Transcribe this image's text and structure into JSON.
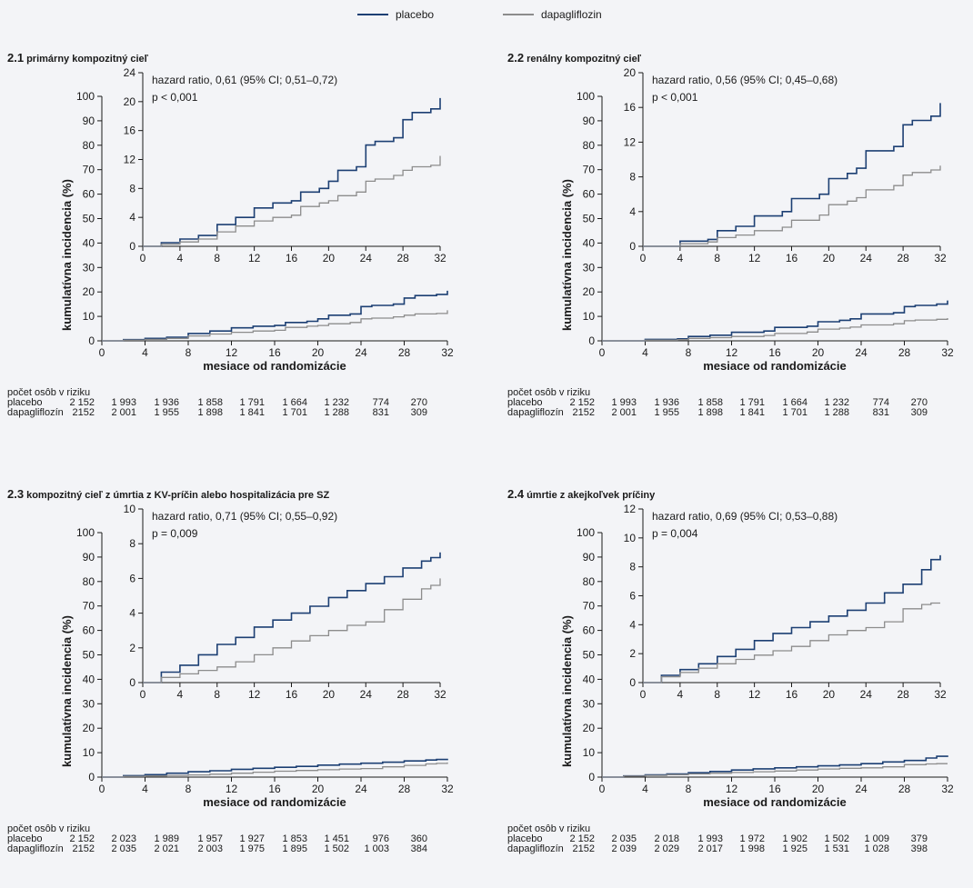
{
  "legend": {
    "placebo": "placebo",
    "dapagliflozin": "dapagliflozin"
  },
  "colors": {
    "placebo": "#1c3f73",
    "dapagliflozin": "#8c8c8c"
  },
  "risk_header": "počet osôb v riziku",
  "risk_labels": {
    "placebo": "placebo",
    "dapagliflozin": "dapagliflozín"
  },
  "xlabel": "mesiace od randomizácie",
  "ylabel": "kumulatívna incidencia  (%)",
  "chart_data": [
    {
      "type": "line",
      "number": "2.1",
      "title": "primárny kompozitný cieľ",
      "annotation": [
        "hazard ratio, 0,61 (95% CI; 0,51–0,72)",
        "p < 0,001"
      ],
      "xlabel": "mesiace od randomizácie",
      "ylabel": "kumulatívna incidencia  (%)",
      "xlim": [
        0,
        32
      ],
      "ylim": [
        0,
        100
      ],
      "xticks": [
        0,
        4,
        8,
        12,
        16,
        20,
        24,
        28,
        32
      ],
      "yticks": [
        0,
        10,
        20,
        30,
        40,
        50,
        60,
        70,
        80,
        90,
        100
      ],
      "inset": {
        "xlim": [
          0,
          32
        ],
        "ylim": [
          0,
          24
        ],
        "xticks": [
          0,
          4,
          8,
          12,
          16,
          20,
          24,
          28,
          32
        ],
        "yticks": [
          0,
          4,
          8,
          12,
          16,
          20,
          24
        ]
      },
      "series": [
        {
          "name": "placebo",
          "x": [
            0,
            2,
            4,
            6,
            8,
            10,
            12,
            14,
            16,
            17,
            19,
            20,
            21,
            23,
            24,
            25,
            27,
            28,
            29,
            31,
            32
          ],
          "y": [
            0,
            0.5,
            1,
            1.5,
            3,
            4,
            5.3,
            6,
            6.3,
            7.5,
            8,
            9,
            10.5,
            11,
            14,
            14.5,
            15,
            17.5,
            18.5,
            19,
            20.5
          ]
        },
        {
          "name": "dapagliflozin",
          "x": [
            0,
            2,
            4,
            6,
            8,
            10,
            12,
            14,
            16,
            17,
            19,
            20,
            21,
            23,
            24,
            25,
            27,
            28,
            29,
            31,
            32
          ],
          "y": [
            0,
            0.3,
            0.6,
            1,
            2,
            2.8,
            3.5,
            4,
            4.3,
            5.5,
            6,
            6.3,
            7,
            7.5,
            9,
            9.3,
            9.8,
            10.5,
            11,
            11.2,
            12.5
          ]
        }
      ],
      "risk": {
        "placebo": [
          "2 152",
          "1 993",
          "1 936",
          "1 858",
          "1 791",
          "1 664",
          "1 232",
          "774",
          "270"
        ],
        "dapagliflozin": [
          "2152",
          "2 001",
          "1 955",
          "1 898",
          "1 841",
          "1 701",
          "1 288",
          "831",
          "309"
        ]
      }
    },
    {
      "type": "line",
      "number": "2.2",
      "title": "renálny kompozitný cieľ",
      "annotation": [
        "hazard ratio, 0,56 (95% CI; 0,45–0,68)",
        "p < 0,001"
      ],
      "xlabel": "mesiace od randomizácie",
      "ylabel": "kumulatívna incidencia  (%)",
      "xlim": [
        0,
        32
      ],
      "ylim": [
        0,
        100
      ],
      "xticks": [
        0,
        4,
        8,
        12,
        16,
        20,
        24,
        28,
        32
      ],
      "yticks": [
        0,
        10,
        20,
        30,
        40,
        50,
        60,
        70,
        80,
        90,
        100
      ],
      "inset": {
        "xlim": [
          0,
          32
        ],
        "ylim": [
          0,
          20
        ],
        "xticks": [
          0,
          4,
          8,
          12,
          16,
          20,
          24,
          28,
          32
        ],
        "yticks": [
          0,
          4,
          8,
          12,
          16,
          20
        ]
      },
      "series": [
        {
          "name": "placebo",
          "x": [
            0,
            4,
            7,
            8,
            10,
            12,
            15,
            16,
            19,
            20,
            22,
            23,
            24,
            27,
            28,
            29,
            31,
            32
          ],
          "y": [
            0,
            0.6,
            0.8,
            1.8,
            2.3,
            3.5,
            4,
            5.5,
            6,
            7.8,
            8.4,
            9,
            11,
            11.5,
            14,
            14.5,
            15,
            16.5
          ]
        },
        {
          "name": "dapagliflozin",
          "x": [
            0,
            4,
            7,
            8,
            10,
            12,
            15,
            16,
            19,
            20,
            22,
            23,
            24,
            27,
            28,
            29,
            31,
            32
          ],
          "y": [
            0,
            0.3,
            0.5,
            1,
            1.3,
            1.8,
            2.2,
            3,
            3.6,
            4.8,
            5.2,
            5.6,
            6.5,
            7,
            8.2,
            8.5,
            8.8,
            9.3
          ]
        }
      ],
      "risk": {
        "placebo": [
          "2 152",
          "1 993",
          "1 936",
          "1 858",
          "1 791",
          "1 664",
          "1 232",
          "774",
          "270"
        ],
        "dapagliflozin": [
          "2152",
          "2 001",
          "1 955",
          "1 898",
          "1 841",
          "1 701",
          "1 288",
          "831",
          "309"
        ]
      }
    },
    {
      "type": "line",
      "number": "2.3",
      "title": "kompozitný cieľ z úmrtia z KV-príčin alebo hospitalizácia pre SZ",
      "annotation": [
        "hazard ratio, 0,71 (95% CI; 0,55–0,92)",
        "p = 0,009"
      ],
      "xlabel": "mesiace od randomizácie",
      "ylabel": "kumulatívna incidencia  (%)",
      "xlim": [
        0,
        32
      ],
      "ylim": [
        0,
        100
      ],
      "xticks": [
        0,
        4,
        8,
        12,
        16,
        20,
        24,
        28,
        32
      ],
      "yticks": [
        0,
        10,
        20,
        30,
        40,
        50,
        60,
        70,
        80,
        90,
        100
      ],
      "inset": {
        "xlim": [
          0,
          32
        ],
        "ylim": [
          0,
          10
        ],
        "xticks": [
          0,
          4,
          8,
          12,
          16,
          20,
          24,
          28,
          32
        ],
        "yticks": [
          0,
          2,
          4,
          6,
          8,
          10
        ]
      },
      "series": [
        {
          "name": "placebo",
          "x": [
            0,
            2,
            4,
            6,
            8,
            10,
            12,
            14,
            16,
            18,
            20,
            22,
            24,
            26,
            28,
            30,
            31,
            32
          ],
          "y": [
            0,
            0.6,
            1,
            1.6,
            2.2,
            2.6,
            3.2,
            3.6,
            4,
            4.4,
            4.9,
            5.3,
            5.7,
            6.1,
            6.6,
            7,
            7.2,
            7.5
          ]
        },
        {
          "name": "dapagliflozin",
          "x": [
            0,
            2,
            4,
            6,
            8,
            10,
            12,
            14,
            16,
            18,
            20,
            22,
            24,
            26,
            28,
            30,
            31,
            32
          ],
          "y": [
            0,
            0.3,
            0.5,
            0.7,
            0.9,
            1.2,
            1.6,
            2,
            2.4,
            2.7,
            3,
            3.3,
            3.5,
            4.2,
            4.8,
            5.4,
            5.6,
            6
          ]
        }
      ],
      "risk": {
        "placebo": [
          "2 152",
          "2 023",
          "1 989",
          "1 957",
          "1 927",
          "1 853",
          "1 451",
          "976",
          "360"
        ],
        "dapagliflozin": [
          "2152",
          "2 035",
          "2 021",
          "2 003",
          "1 975",
          "1 895",
          "1 502",
          "1 003",
          "384"
        ]
      }
    },
    {
      "type": "line",
      "number": "2.4",
      "title": "úmrtie z akejkoľvek príčiny",
      "annotation": [
        "hazard ratio, 0,69 (95% CI; 0,53–0,88)",
        "p = 0,004"
      ],
      "xlabel": "mesiace od randomizácie",
      "ylabel": "kumulatívna incidencia  (%)",
      "xlim": [
        0,
        32
      ],
      "ylim": [
        0,
        100
      ],
      "xticks": [
        0,
        4,
        8,
        12,
        16,
        20,
        24,
        28,
        32
      ],
      "yticks": [
        0,
        10,
        20,
        30,
        40,
        50,
        60,
        70,
        80,
        90,
        100
      ],
      "inset": {
        "xlim": [
          0,
          32
        ],
        "ylim": [
          0,
          12
        ],
        "xticks": [
          0,
          4,
          8,
          12,
          16,
          20,
          24,
          28,
          32
        ],
        "yticks": [
          0,
          2,
          4,
          6,
          8,
          10,
          12
        ]
      },
      "series": [
        {
          "name": "placebo",
          "x": [
            0,
            2,
            4,
            6,
            8,
            10,
            12,
            14,
            16,
            18,
            20,
            22,
            24,
            26,
            28,
            30,
            31,
            32
          ],
          "y": [
            0,
            0.5,
            0.9,
            1.3,
            1.8,
            2.3,
            2.9,
            3.4,
            3.8,
            4.2,
            4.6,
            5,
            5.5,
            6.2,
            6.8,
            7.8,
            8.5,
            8.8
          ]
        },
        {
          "name": "dapagliflozin",
          "x": [
            0,
            2,
            4,
            6,
            8,
            10,
            12,
            14,
            16,
            18,
            20,
            22,
            24,
            26,
            28,
            30,
            31,
            32
          ],
          "y": [
            0,
            0.4,
            0.7,
            1,
            1.3,
            1.6,
            1.9,
            2.2,
            2.5,
            2.9,
            3.3,
            3.6,
            3.8,
            4.2,
            5.1,
            5.4,
            5.5,
            5.5
          ]
        }
      ],
      "risk": {
        "placebo": [
          "2 152",
          "2 035",
          "2 018",
          "1 993",
          "1 972",
          "1 902",
          "1 502",
          "1 009",
          "379"
        ],
        "dapagliflozin": [
          "2152",
          "2 039",
          "2 029",
          "2 017",
          "1 998",
          "1 925",
          "1 531",
          "1 028",
          "398"
        ]
      }
    }
  ]
}
